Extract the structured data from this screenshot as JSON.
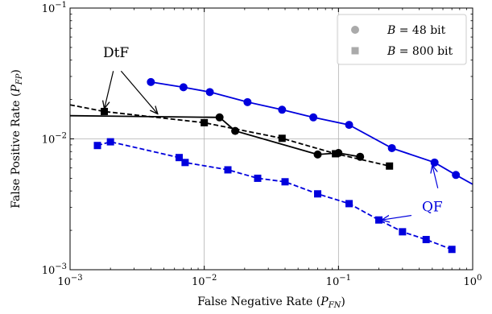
{
  "chart_data": {
    "type": "line",
    "xscale": "log",
    "yscale": "log",
    "xlim": [
      0.001,
      1
    ],
    "ylim": [
      0.001,
      0.1
    ],
    "grid": "major",
    "xlabel_prefix": "False Negative Rate (",
    "xlabel_sym": "P",
    "xlabel_sub": "FN",
    "xlabel_suffix": ")",
    "ylabel_prefix": "False Positive Rate (",
    "ylabel_sym": "P",
    "ylabel_sub": "FP",
    "ylabel_suffix": ")",
    "xticks": [
      {
        "value": 0.001,
        "base": "10",
        "exp": "−3"
      },
      {
        "value": 0.01,
        "base": "10",
        "exp": "−2"
      },
      {
        "value": 0.1,
        "base": "10",
        "exp": "−1"
      },
      {
        "value": 1,
        "base": "10",
        "exp": "0"
      }
    ],
    "yticks": [
      {
        "value": 0.001,
        "base": "10",
        "exp": "−3"
      },
      {
        "value": 0.01,
        "base": "10",
        "exp": "−2"
      },
      {
        "value": 0.1,
        "base": "10",
        "exp": "−1"
      }
    ],
    "legend": {
      "placement": "top-right",
      "entries": [
        {
          "marker": "circle",
          "var": "B",
          "rest": " = 48 bit",
          "color": "#aaaaaa"
        },
        {
          "marker": "square",
          "var": "B",
          "rest": " = 800 bit",
          "color": "#aaaaaa"
        }
      ]
    },
    "series": [
      {
        "method": "DtF",
        "bits": 48,
        "marker": "circle",
        "color": "#000000",
        "dash": "solid",
        "x": [
          0.00045,
          0.013,
          0.017,
          0.07,
          0.1,
          0.145
        ],
        "y": [
          0.0152,
          0.0146,
          0.0115,
          0.0076,
          0.0078,
          0.0073
        ],
        "line_start": [
          0.001,
          0.0205
        ]
      },
      {
        "method": "DtF",
        "bits": 800,
        "marker": "square",
        "color": "#000000",
        "dash": "dashed",
        "x": [
          0.0018,
          0.01,
          0.038,
          0.095,
          0.24
        ],
        "y": [
          0.0162,
          0.0133,
          0.0101,
          0.0077,
          0.0062
        ],
        "line_start": [
          0.001,
          0.0182
        ]
      },
      {
        "method": "QF",
        "bits": 48,
        "marker": "circle",
        "color": "#0000dd",
        "dash": "solid",
        "x": [
          0.004,
          0.007,
          0.011,
          0.021,
          0.038,
          0.065,
          0.12,
          0.25,
          0.52,
          0.75
        ],
        "y": [
          0.0272,
          0.0248,
          0.0228,
          0.0191,
          0.0167,
          0.0146,
          0.0128,
          0.0085,
          0.0066,
          0.0053
        ],
        "line_end": [
          1,
          0.0045
        ]
      },
      {
        "method": "QF",
        "bits": 800,
        "marker": "square",
        "color": "#0000dd",
        "dash": "dashed",
        "x": [
          0.0016,
          0.002,
          0.0065,
          0.0072,
          0.015,
          0.025,
          0.04,
          0.07,
          0.12,
          0.2,
          0.3,
          0.45,
          0.7
        ],
        "y": [
          0.0089,
          0.0095,
          0.0072,
          0.0066,
          0.0058,
          0.005,
          0.0047,
          0.0038,
          0.0032,
          0.0024,
          0.00195,
          0.0017,
          0.00143
        ]
      }
    ],
    "annotations": [
      {
        "text": "DtF",
        "color": "#000000",
        "text_at": [
          0.0022,
          0.042
        ],
        "arrows": [
          {
            "from": [
              0.0021,
              0.033
            ],
            "to": [
              0.0018,
              0.017
            ]
          },
          {
            "from": [
              0.0024,
              0.033
            ],
            "to": [
              0.0045,
              0.0155
            ]
          }
        ]
      },
      {
        "text": "QF",
        "color": "#0000dd",
        "text_at": [
          0.5,
          0.0028
        ],
        "arrows": [
          {
            "from": [
              0.55,
              0.0042
            ],
            "to": [
              0.5,
              0.0063
            ]
          },
          {
            "from": [
              0.35,
              0.0026
            ],
            "to": [
              0.21,
              0.0024
            ]
          }
        ]
      }
    ]
  }
}
